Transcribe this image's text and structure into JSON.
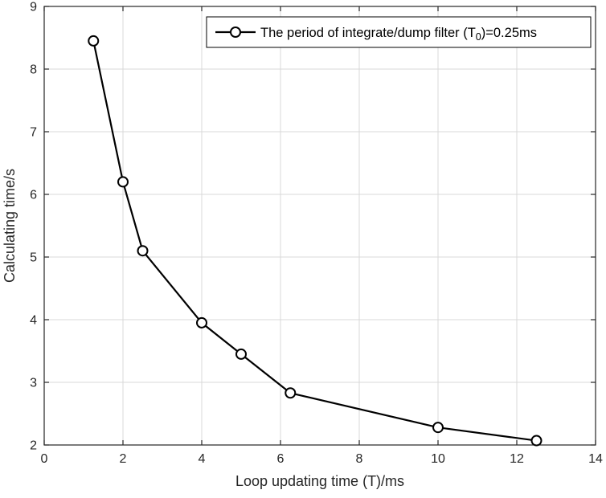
{
  "chart_data": {
    "type": "line",
    "title": "",
    "xlabel": "Loop updating time (T)/ms",
    "ylabel": "Calculating time/s",
    "xlim": [
      0,
      14
    ],
    "ylim": [
      2,
      9
    ],
    "xticks": [
      0,
      2,
      4,
      6,
      8,
      10,
      12,
      14
    ],
    "yticks": [
      2,
      3,
      4,
      5,
      6,
      7,
      8,
      9
    ],
    "grid": true,
    "legend_position": "top-right-inside",
    "series": [
      {
        "name": "The period of integrate/dump filter (T0)=0.25ms",
        "x": [
          1.25,
          2,
          2.5,
          4,
          5,
          6.25,
          10,
          12.5
        ],
        "y": [
          8.45,
          6.2,
          5.1,
          3.95,
          3.45,
          2.83,
          2.28,
          2.07
        ],
        "color": "#000000",
        "marker": "open-circle",
        "line_width": 2.2
      }
    ],
    "legend": {
      "label_prefix": "The period of integrate/dump filter (T",
      "label_sub": "0",
      "label_suffix": ")=0.25ms"
    },
    "colors": {
      "background": "#ffffff",
      "grid": "#d9d9d9",
      "axis": "#262626",
      "line": "#000000",
      "marker_fill": "#ffffff"
    }
  }
}
